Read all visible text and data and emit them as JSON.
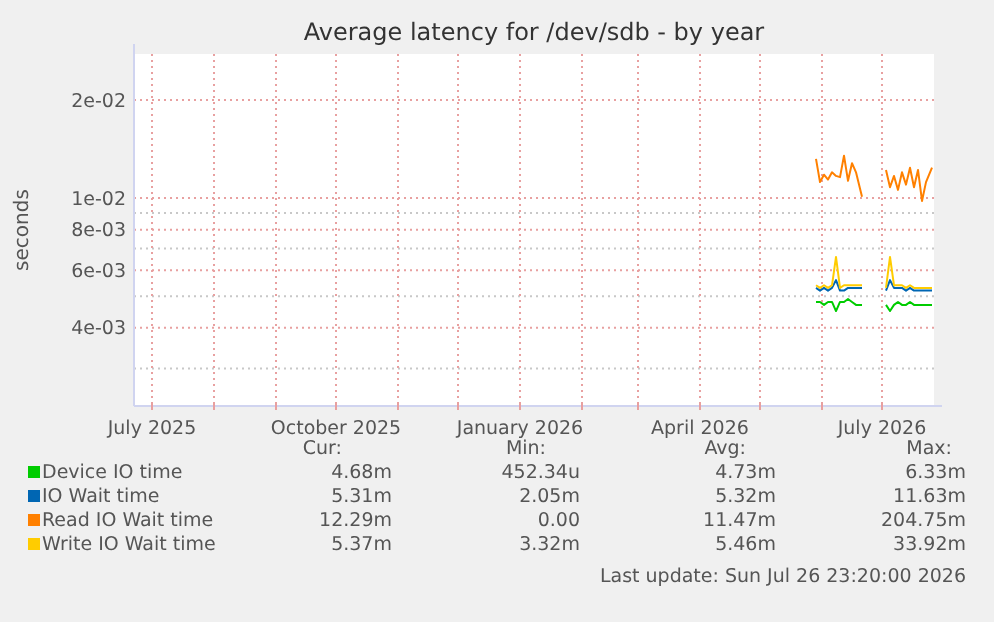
{
  "chart_data": {
    "type": "line",
    "title": "Average latency for /dev/sdb - by year",
    "ylabel": "seconds",
    "log": true,
    "grid": true,
    "legend": "bottom",
    "line_style": "solid",
    "marker": "none",
    "x": [
      "2026-05-29",
      "2026-05-31",
      "2026-06-02",
      "2026-06-04",
      "2026-06-06",
      "2026-06-08",
      "2026-06-10",
      "2026-06-12",
      "2026-06-14",
      "2026-06-16",
      "2026-06-18",
      "2026-06-21",
      "2026-06-27",
      "2026-07-03",
      "2026-07-05",
      "2026-07-07",
      "2026-07-09",
      "2026-07-11",
      "2026-07-13",
      "2026-07-15",
      "2026-07-17",
      "2026-07-19",
      "2026-07-21",
      "2026-07-23",
      "2026-07-26"
    ],
    "xlim": [
      "2025-06-22",
      "2026-07-27"
    ],
    "xticks": [
      {
        "value": "2025-07-01",
        "label": "July 2025"
      },
      {
        "value": "2025-08-01",
        "label": null
      },
      {
        "value": "2025-09-01",
        "label": null
      },
      {
        "value": "2025-10-01",
        "label": "October 2025"
      },
      {
        "value": "2025-11-01",
        "label": null
      },
      {
        "value": "2025-12-01",
        "label": null
      },
      {
        "value": "2026-01-01",
        "label": "January 2026"
      },
      {
        "value": "2026-02-01",
        "label": null
      },
      {
        "value": "2026-03-01",
        "label": null
      },
      {
        "value": "2026-04-01",
        "label": "April 2026"
      },
      {
        "value": "2026-05-01",
        "label": null
      },
      {
        "value": "2026-06-01",
        "label": null
      },
      {
        "value": "2026-07-01",
        "label": "July 2026"
      }
    ],
    "ylim": [
      0.0023,
      0.0277
    ],
    "yticks": [
      {
        "value": 0.003,
        "label": null
      },
      {
        "value": 0.004,
        "label": "4e-03"
      },
      {
        "value": 0.005,
        "label": null
      },
      {
        "value": 0.006,
        "label": "6e-03"
      },
      {
        "value": 0.007,
        "label": null
      },
      {
        "value": 0.008,
        "label": "8e-03"
      },
      {
        "value": 0.009,
        "label": null
      },
      {
        "value": 0.01,
        "label": "1e-02"
      },
      {
        "value": 0.02,
        "label": "2e-02"
      }
    ],
    "series": [
      {
        "name": "Device IO time",
        "color": "#00cc00",
        "values": [
          0.0048,
          0.0048,
          0.0047,
          0.0048,
          0.0048,
          0.0045,
          0.0048,
          0.0048,
          0.0049,
          0.0048,
          0.0047,
          0.0047,
          null,
          0.0047,
          0.0045,
          0.0047,
          0.0048,
          0.0047,
          0.0047,
          0.0048,
          0.0047,
          0.0047,
          0.0047,
          0.0047,
          0.0047
        ]
      },
      {
        "name": "IO Wait time",
        "color": "#0066b3",
        "values": [
          0.0053,
          0.0052,
          0.0053,
          0.0052,
          0.0053,
          0.0056,
          0.0052,
          0.0052,
          0.0053,
          0.0053,
          0.0053,
          0.0053,
          null,
          0.0052,
          0.0056,
          0.0053,
          0.0053,
          0.0053,
          0.0052,
          0.0053,
          0.0052,
          0.0052,
          0.0052,
          0.0052,
          0.0052
        ]
      },
      {
        "name": "Read IO Wait time",
        "color": "#ff8000",
        "values": [
          0.0132,
          0.0112,
          0.0118,
          0.0114,
          0.012,
          0.0117,
          0.0116,
          0.0135,
          0.0113,
          0.0128,
          0.012,
          0.0101,
          null,
          0.0122,
          0.0108,
          0.0117,
          0.0106,
          0.012,
          0.011,
          0.0124,
          0.0108,
          0.0122,
          0.0098,
          0.0112,
          0.0124
        ]
      },
      {
        "name": "Write IO Wait time",
        "color": "#ffcc00",
        "values": [
          0.0054,
          0.0053,
          0.0054,
          0.0053,
          0.0054,
          0.0066,
          0.0053,
          0.0054,
          0.0054,
          0.0054,
          0.0054,
          0.0054,
          null,
          0.0053,
          0.0066,
          0.0054,
          0.0054,
          0.0054,
          0.0053,
          0.0054,
          0.0053,
          0.0053,
          0.0053,
          0.0053,
          0.0053
        ]
      }
    ],
    "annotations": [
      "Cur:",
      "Min:",
      "Avg:",
      "Max:",
      "4.68m",
      "452.34u",
      "4.73m",
      "6.33m",
      "5.31m",
      "2.05m",
      "5.32m",
      "11.63m",
      "12.29m",
      "0.00",
      "11.47m",
      "204.75m",
      "5.37m",
      "3.32m",
      "5.46m",
      "33.92m",
      "Last update: Sun Jul 26 23:20:00 2026"
    ]
  }
}
